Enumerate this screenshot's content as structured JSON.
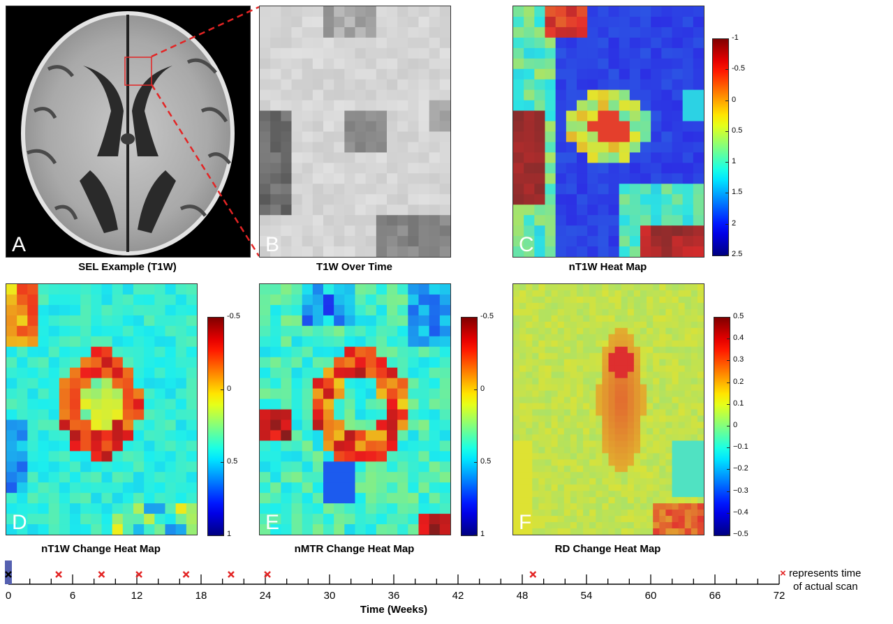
{
  "panels": {
    "A": {
      "letter": "A",
      "caption": "SEL Example (T1W)"
    },
    "B": {
      "letter": "B",
      "caption": "T1W Over Time"
    },
    "C": {
      "letter": "C",
      "caption": "nT1W Heat Map",
      "colorbar_ticks": [
        "-1",
        "-0.5",
        "0",
        "0.5",
        "1",
        "1.5",
        "2",
        "2.5"
      ]
    },
    "D": {
      "letter": "D",
      "caption": "nT1W Change Heat Map",
      "colorbar_ticks": [
        "-0.5",
        "0",
        "0.5",
        "1"
      ]
    },
    "E": {
      "letter": "E",
      "caption": "nMTR Change Heat Map",
      "colorbar_ticks": [
        "-0.5",
        "0",
        "0.5",
        "1"
      ]
    },
    "F": {
      "letter": "F",
      "caption": "RD Change Heat Map",
      "colorbar_ticks": [
        "0.5",
        "0.4",
        "0.3",
        "0.2",
        "0.1",
        "0",
        "−0.1",
        "−0.2",
        "−0.3",
        "−0.4",
        "−0.5"
      ]
    }
  },
  "colors": {
    "dashed_line": "#e32424",
    "scan_marker": "#e32424",
    "current_marker": "#5560b0"
  },
  "timeline": {
    "axis_label": "Time (Weeks)",
    "tick_labels": [
      "0",
      "6",
      "12",
      "18",
      "24",
      "30",
      "36",
      "42",
      "48",
      "54",
      "60",
      "66",
      "72"
    ],
    "scan_times_weeks": [
      0,
      4.7,
      8.7,
      12.2,
      16.6,
      20.8,
      24.2,
      49
    ]
  },
  "legend": {
    "symbol": "×",
    "line1": "represents time",
    "line2": "of actual scan"
  }
}
